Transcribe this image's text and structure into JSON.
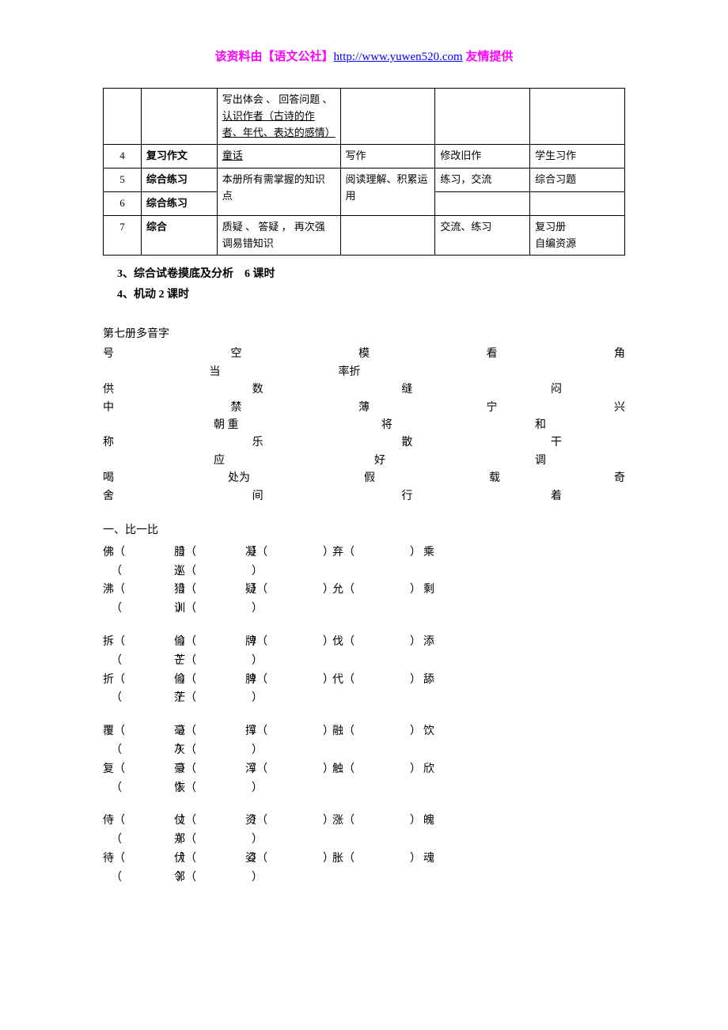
{
  "header": {
    "prefix": "该资料由【语文公社】",
    "link": "http://www.yuwen520.com",
    "suffix": " 友情提供"
  },
  "table_rows": [
    {
      "num": "",
      "name": "",
      "c3": "写出体会 、 回答问题 、 <u>认识作者（古诗的作者、年代、表达的感情）</u>",
      "c4": "",
      "c5": "",
      "c6": ""
    },
    {
      "num": "4",
      "name": "复习作文",
      "c3": "<u>童话</u>",
      "c4": "写作",
      "c5": "修改旧作",
      "c6": "学生习作",
      "bold_name": true
    },
    {
      "num": "5",
      "name": "综合练习",
      "c3": "本册所有需掌握的知识点",
      "c4": "阅读理解、积累运用",
      "c5": "练习，交流",
      "c6": "综合习题",
      "bold_name": true,
      "rowspan_c3_c4": true
    },
    {
      "num": "6",
      "name": "综合练习",
      "c3": "",
      "c4": "",
      "c5": "",
      "c6": "",
      "bold_name": true
    },
    {
      "num": "7",
      "name": "综合",
      "c3": "质疑 、 答疑 ， 再次强调易错知识",
      "c4": "",
      "c5": "交流、练习",
      "c6": "复习册<br>自编资源",
      "bold_name": true
    }
  ],
  "notes": [
    "3、综合试卷摸底及分析　6 课时",
    "4、机动 2 课时"
  ],
  "polyphone_title": "第七册多音字",
  "polyphone_lines": [
    [
      "号",
      "空",
      "模",
      "看",
      "角"
    ],
    [
      "当",
      "率折"
    ],
    [
      "供",
      "数",
      "缝",
      "闷"
    ],
    [
      "中",
      "禁",
      "薄",
      "宁",
      "兴"
    ],
    [
      "朝 重",
      "将",
      "和"
    ],
    [
      "称",
      "乐",
      "散",
      "干"
    ],
    [
      "应",
      "好",
      "调"
    ],
    [
      "喝",
      "处为",
      "假",
      "载",
      "奇"
    ],
    [
      "舍",
      "间",
      "行",
      "着"
    ]
  ],
  "compare_title": "一、比一比",
  "groups": [
    {
      "r1": [
        "佛（",
        "） 腊（",
        "）　 凝（",
        "）　　弃（",
        "）　　乘"
      ],
      "r2": [
        "（",
        "） 巡（",
        "）"
      ],
      "r3": [
        "沸（",
        "） 猎（",
        "）　 疑（",
        "）　　允（",
        "）　　剩"
      ],
      "r4": [
        "（",
        "） 训（",
        "）"
      ]
    },
    {
      "r1": [
        "拆（",
        "）  偷（",
        "）　 牌（",
        "）　　伐（",
        "）　　添"
      ],
      "r2": [
        "（",
        "）芒（",
        "）"
      ],
      "r3": [
        "折（",
        "）  偷（",
        "）　 脾（",
        "）　　代（",
        "）　　舔"
      ],
      "r4": [
        "（",
        "）茫（",
        "）"
      ]
    },
    {
      "r1": [
        "覆（",
        "） 毫（",
        "）　 挥（",
        "）　　融（",
        "）　　饮"
      ],
      "r2": [
        "（",
        "）灰（",
        "）"
      ],
      "r3": [
        "复（",
        "）  豪（",
        "）　 浑（",
        "）　　触（",
        "）　　欣"
      ],
      "r4": [
        "（",
        "）恢（",
        "）"
      ]
    },
    {
      "r1": [
        "侍（",
        "）  仗（",
        "）　 资（",
        "）　　涨（",
        "）　　魄"
      ],
      "r2": [
        "（",
        "）郑（",
        "）"
      ],
      "r3": [
        "待（",
        "）  伏（",
        "）　 姿（",
        "）　　胀（",
        "）　　魂"
      ],
      "r4": [
        "（",
        "）邻（",
        "）"
      ]
    }
  ],
  "gap": "　　　　　"
}
